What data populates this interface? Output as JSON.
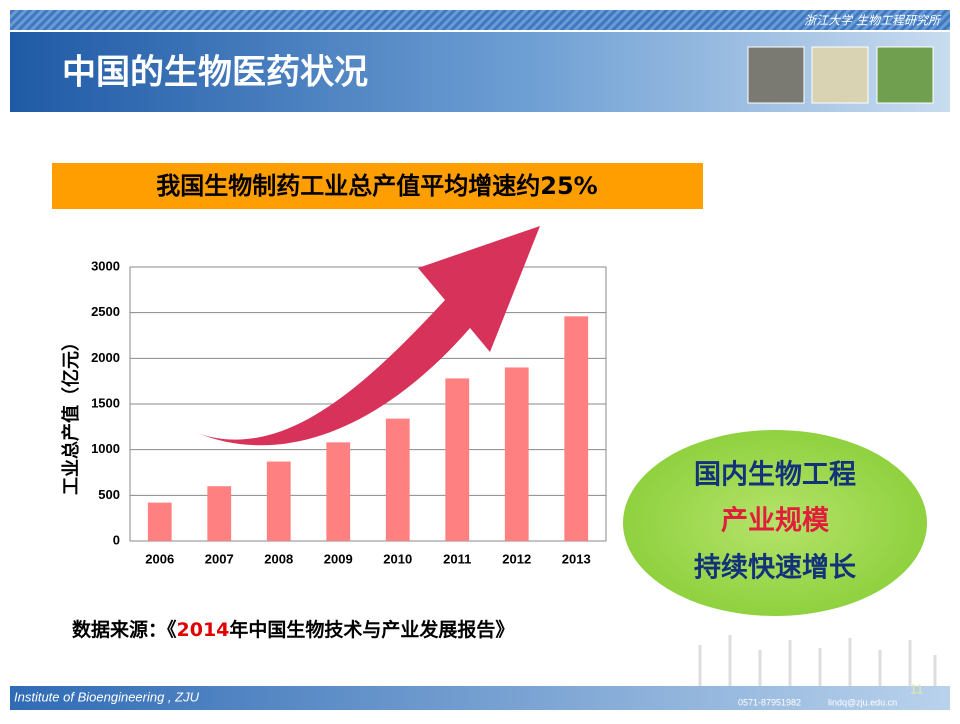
{
  "header": {
    "institute": "浙江大学 生物工程研究所",
    "title": "中国的生物医药状况"
  },
  "banner": "我国生物制药工业总产值平均增速约25%",
  "chart_data": {
    "type": "bar",
    "ylabel": "工业总产值（亿元）",
    "categories": [
      "2006",
      "2007",
      "2008",
      "2009",
      "2010",
      "2011",
      "2012",
      "2013"
    ],
    "values": [
      420,
      600,
      870,
      1080,
      1340,
      1780,
      1900,
      2460
    ],
    "color": "#ff8080",
    "ylim": [
      0,
      3000
    ],
    "yticks": [
      0,
      500,
      1000,
      1500,
      2000,
      2500,
      3000
    ],
    "grid": true
  },
  "source": {
    "prefix": "数据来源：《",
    "year": "2014",
    "suffix": "年中国生物技术与产业发展报告》"
  },
  "callout": [
    "国内生物工程",
    "产业规模",
    "持续快速增长"
  ],
  "footer": {
    "left": "Institute of Bioengineering , ZJU",
    "phone": "0571-87951982",
    "email": "lindq@zju.edu.cn",
    "page": "11"
  }
}
